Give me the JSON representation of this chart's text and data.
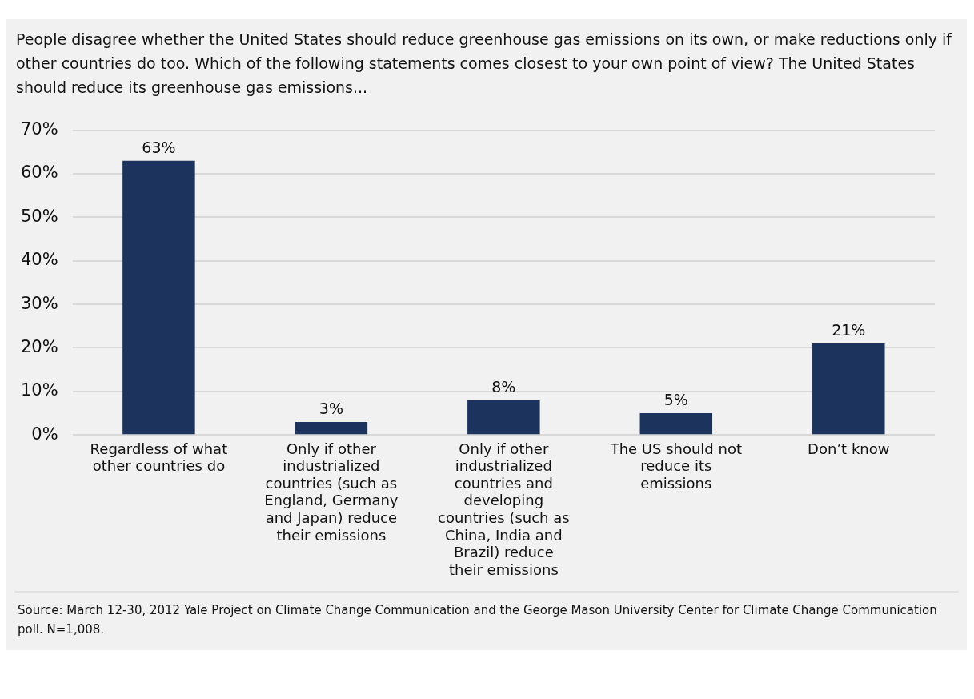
{
  "chart_data": {
    "type": "bar",
    "title": "People disagree whether the United States should reduce greenhouse gas emissions on its own, or make reductions only if other countries do too. Which of the following statements comes closest to your own point of view? The United States should reduce its greenhouse gas emissions...",
    "categories": [
      "Regardless of what other countries do",
      "Only if other industrialized countries (such as England, Germany and Japan) reduce their emissions",
      "Only if other industrialized countries and developing countries (such as China, India and Brazil) reduce their emissions",
      "The US should not reduce its emissions",
      "Don’t know"
    ],
    "values": [
      63,
      3,
      8,
      5,
      21
    ],
    "value_labels": [
      "63%",
      "3%",
      "8%",
      "5%",
      "21%"
    ],
    "color": "#1c335e",
    "ylim": [
      0,
      70
    ],
    "yticks": [
      {
        "value": 0,
        "label": "0%"
      },
      {
        "value": 10,
        "label": "10%"
      },
      {
        "value": 20,
        "label": "20%"
      },
      {
        "value": 30,
        "label": "30%"
      },
      {
        "value": 40,
        "label": "40%"
      },
      {
        "value": 50,
        "label": "50%"
      },
      {
        "value": 60,
        "label": "60%"
      },
      {
        "value": 70,
        "label": "70%"
      }
    ],
    "grid": "y",
    "legend": false,
    "annotations": [
      "Source: March 12-30, 2012 Yale Project on Climate Change Communication and the George Mason University Center for Climate Change Communication poll.  N=1,008."
    ]
  }
}
